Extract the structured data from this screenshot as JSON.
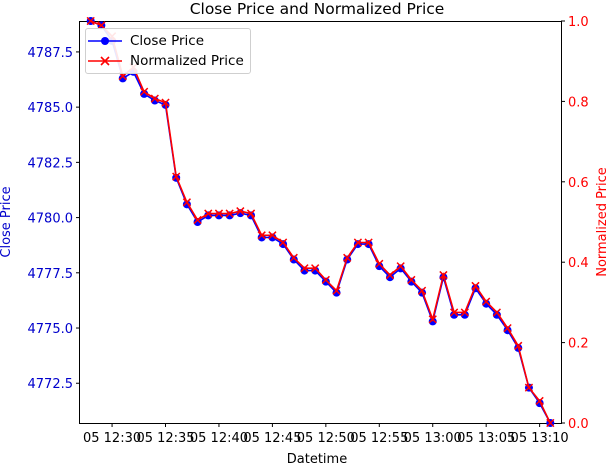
{
  "chart_data": {
    "type": "line",
    "title": "Close Price and Normalized Price",
    "xlabel": "Datetime",
    "ylabel_left": "Close Price",
    "ylabel_right": "Normalized Price",
    "left_axis_color": "#0000cc",
    "right_axis_color": "#ff0000",
    "left_ticks": [
      4772.5,
      4775.0,
      4777.5,
      4780.0,
      4782.5,
      4785.0,
      4787.5
    ],
    "left_tick_labels": [
      "4772.5",
      "4775.0",
      "4777.5",
      "4780.0",
      "4782.5",
      "4785.0",
      "4787.5"
    ],
    "right_ticks": [
      0.0,
      0.2,
      0.4,
      0.6,
      0.8,
      1.0
    ],
    "right_tick_labels": [
      "0.0",
      "0.2",
      "0.4",
      "0.6",
      "0.8",
      "1.0"
    ],
    "ylim_left": [
      4770.7,
      4788.9
    ],
    "ylim_right": [
      0.0,
      1.0
    ],
    "x_tick_times": [
      "12:30",
      "12:35",
      "12:40",
      "12:45",
      "12:50",
      "12:55",
      "13:00",
      "13:05",
      "13:10"
    ],
    "x_tick_labels": [
      "05 12:30",
      "05 12:35",
      "05 12:40",
      "05 12:45",
      "05 12:50",
      "05 12:55",
      "05 13:00",
      "05 13:05",
      "05 13:10"
    ],
    "x_start": "12:28",
    "x_end": "13:11",
    "xlim": [
      "12:27",
      "13:12"
    ],
    "series": [
      {
        "name": "Close Price",
        "axis": "left",
        "color": "#0000ff",
        "marker": "circle",
        "x": [
          "12:28",
          "12:29",
          "12:30",
          "12:31",
          "12:32",
          "12:33",
          "12:34",
          "12:35",
          "12:36",
          "12:37",
          "12:38",
          "12:39",
          "12:40",
          "12:41",
          "12:42",
          "12:43",
          "12:44",
          "12:45",
          "12:46",
          "12:47",
          "12:48",
          "12:49",
          "12:50",
          "12:51",
          "12:52",
          "12:53",
          "12:54",
          "12:55",
          "12:56",
          "12:57",
          "12:58",
          "12:59",
          "13:00",
          "13:01",
          "13:02",
          "13:03",
          "13:04",
          "13:05",
          "13:06",
          "13:07",
          "13:08",
          "13:09",
          "13:10",
          "13:11"
        ],
        "values": [
          4788.9,
          4788.7,
          4788.0,
          4786.3,
          4786.6,
          4785.6,
          4785.3,
          4785.1,
          4781.8,
          4780.6,
          4779.8,
          4780.1,
          4780.1,
          4780.1,
          4780.2,
          4780.1,
          4779.1,
          4779.1,
          4778.8,
          4778.1,
          4777.6,
          4777.6,
          4777.1,
          4776.6,
          4778.1,
          4778.8,
          4778.8,
          4777.8,
          4777.3,
          4777.7,
          4777.1,
          4776.6,
          4775.3,
          4777.3,
          4775.6,
          4775.6,
          4776.8,
          4776.1,
          4775.6,
          4774.9,
          4774.1,
          4772.3,
          4771.6,
          4770.7
        ]
      },
      {
        "name": "Normalized Price",
        "axis": "right",
        "color": "#ff0000",
        "marker": "x",
        "x": [
          "12:28",
          "12:29",
          "12:30",
          "12:31",
          "12:32",
          "12:33",
          "12:34",
          "12:35",
          "12:36",
          "12:37",
          "12:38",
          "12:39",
          "12:40",
          "12:41",
          "12:42",
          "12:43",
          "12:44",
          "12:45",
          "12:46",
          "12:47",
          "12:48",
          "12:49",
          "12:50",
          "12:51",
          "12:52",
          "12:53",
          "12:54",
          "12:55",
          "12:56",
          "12:57",
          "12:58",
          "12:59",
          "13:00",
          "13:01",
          "13:02",
          "13:03",
          "13:04",
          "13:05",
          "13:06",
          "13:07",
          "13:08",
          "13:09",
          "13:10",
          "13:11"
        ],
        "values": [
          1.0,
          0.989,
          0.962,
          0.863,
          0.885,
          0.824,
          0.807,
          0.797,
          0.613,
          0.549,
          0.505,
          0.521,
          0.521,
          0.521,
          0.527,
          0.521,
          0.467,
          0.467,
          0.449,
          0.411,
          0.385,
          0.385,
          0.356,
          0.329,
          0.411,
          0.449,
          0.449,
          0.396,
          0.368,
          0.39,
          0.356,
          0.329,
          0.258,
          0.368,
          0.275,
          0.275,
          0.341,
          0.302,
          0.275,
          0.236,
          0.192,
          0.088,
          0.055,
          0.0
        ]
      }
    ],
    "legend_position": "upper-left",
    "grid": false
  }
}
